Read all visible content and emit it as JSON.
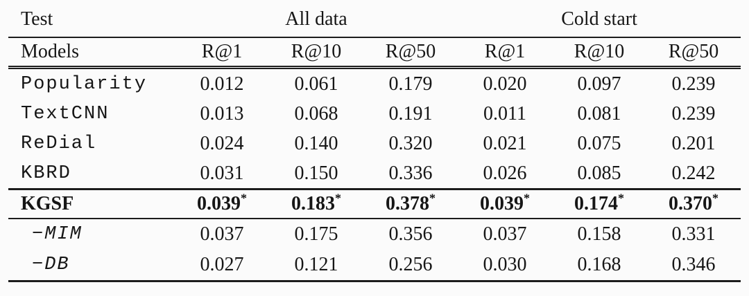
{
  "page": {
    "background": "#fbfbfb",
    "text_color": "#161616",
    "rule_color": "#1c1c1c"
  },
  "table": {
    "header_row1": {
      "test_label": "Test",
      "group_all_data": "All data",
      "group_cold_start": "Cold start"
    },
    "header_row2": {
      "models_label": "Models",
      "metrics": [
        "R@1",
        "R@10",
        "R@50",
        "R@1",
        "R@10",
        "R@50"
      ]
    },
    "star": "*",
    "rows": [
      {
        "model": "Popularity",
        "values": [
          "0.012",
          "0.061",
          "0.179",
          "0.020",
          "0.097",
          "0.239"
        ]
      },
      {
        "model": "TextCNN",
        "values": [
          "0.013",
          "0.068",
          "0.191",
          "0.011",
          "0.081",
          "0.239"
        ]
      },
      {
        "model": "ReDial",
        "values": [
          "0.024",
          "0.140",
          "0.320",
          "0.021",
          "0.075",
          "0.201"
        ]
      },
      {
        "model": "KBRD",
        "values": [
          "0.031",
          "0.150",
          "0.336",
          "0.026",
          "0.085",
          "0.242"
        ]
      },
      {
        "model": "KGSF",
        "values": [
          "0.039",
          "0.183",
          "0.378",
          "0.039",
          "0.174",
          "0.370"
        ],
        "starred": true
      },
      {
        "model": "−MIM",
        "values": [
          "0.037",
          "0.175",
          "0.356",
          "0.037",
          "0.158",
          "0.331"
        ]
      },
      {
        "model": "−DB",
        "values": [
          "0.027",
          "0.121",
          "0.256",
          "0.030",
          "0.168",
          "0.346"
        ]
      }
    ]
  }
}
